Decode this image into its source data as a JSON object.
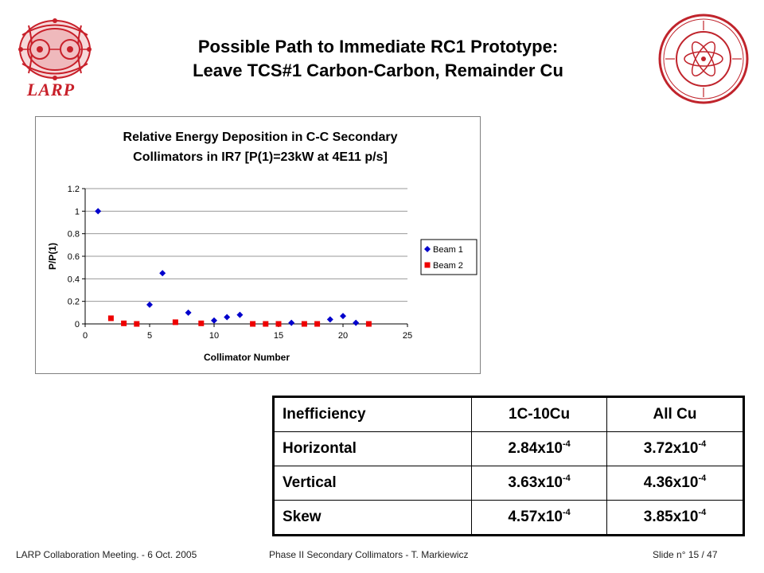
{
  "header": {
    "title_line1": "Possible Path to Immediate RC1 Prototype:",
    "title_line2": "Leave TCS#1 Carbon-Carbon, Remainder Cu",
    "left_logo_text": "LARP",
    "left_logo_icon": "larp-accelerator-logo-icon",
    "right_logo_icon": "slac-seal-icon"
  },
  "colors": {
    "beam1": "#0000cc",
    "beam2": "#ee0000",
    "larp_red": "#c8202a",
    "seal_red": "#c0242c"
  },
  "chart_data": {
    "type": "scatter",
    "title_line1": "Relative Energy Deposition in C-C Secondary",
    "title_line2": "Collimators in IR7 [P(1)=23kW at 4E11 p/s]",
    "xlabel": "Collimator Number",
    "ylabel": "P/P(1)",
    "xlim": [
      0,
      25
    ],
    "ylim": [
      0,
      1.2
    ],
    "xticks": [
      0,
      5,
      10,
      15,
      20,
      25
    ],
    "yticks": [
      0,
      0.2,
      0.4,
      0.6,
      0.8,
      1,
      1.2
    ],
    "grid": "horizontal",
    "legend": "right",
    "series": [
      {
        "name": "Beam 1",
        "marker": "diamond",
        "points": [
          [
            1,
            1.0
          ],
          [
            5,
            0.17
          ],
          [
            6,
            0.45
          ],
          [
            8,
            0.1
          ],
          [
            10,
            0.03
          ],
          [
            11,
            0.06
          ],
          [
            12,
            0.08
          ],
          [
            16,
            0.01
          ],
          [
            19,
            0.04
          ],
          [
            20,
            0.07
          ],
          [
            21,
            0.01
          ]
        ]
      },
      {
        "name": "Beam 2",
        "marker": "square",
        "points": [
          [
            2,
            0.05
          ],
          [
            3,
            0.005
          ],
          [
            4,
            0.0
          ],
          [
            7,
            0.015
          ],
          [
            9,
            0.005
          ],
          [
            13,
            0.0
          ],
          [
            14,
            0.0
          ],
          [
            15,
            0.0
          ],
          [
            17,
            0.0
          ],
          [
            18,
            0.0
          ],
          [
            22,
            0.0
          ]
        ]
      }
    ]
  },
  "table": {
    "header": [
      "Inefficiency",
      "1C-10Cu",
      "All Cu"
    ],
    "rows": [
      {
        "label": "Horizontal",
        "v1": "2.84x10",
        "e1": "-4",
        "v2": "3.72x10",
        "e2": "-4"
      },
      {
        "label": "Vertical",
        "v1": "3.63x10",
        "e1": "-4",
        "v2": "4.36x10",
        "e2": "-4"
      },
      {
        "label": "Skew",
        "v1": "4.57x10",
        "e1": "-4",
        "v2": "3.85x10",
        "e2": "-4"
      }
    ]
  },
  "footer": {
    "left": "LARP Collaboration Meeting.  -  6 Oct. 2005",
    "center": "Phase II Secondary Collimators  -  T. Markiewicz",
    "right": "Slide n° 15 / 47"
  }
}
